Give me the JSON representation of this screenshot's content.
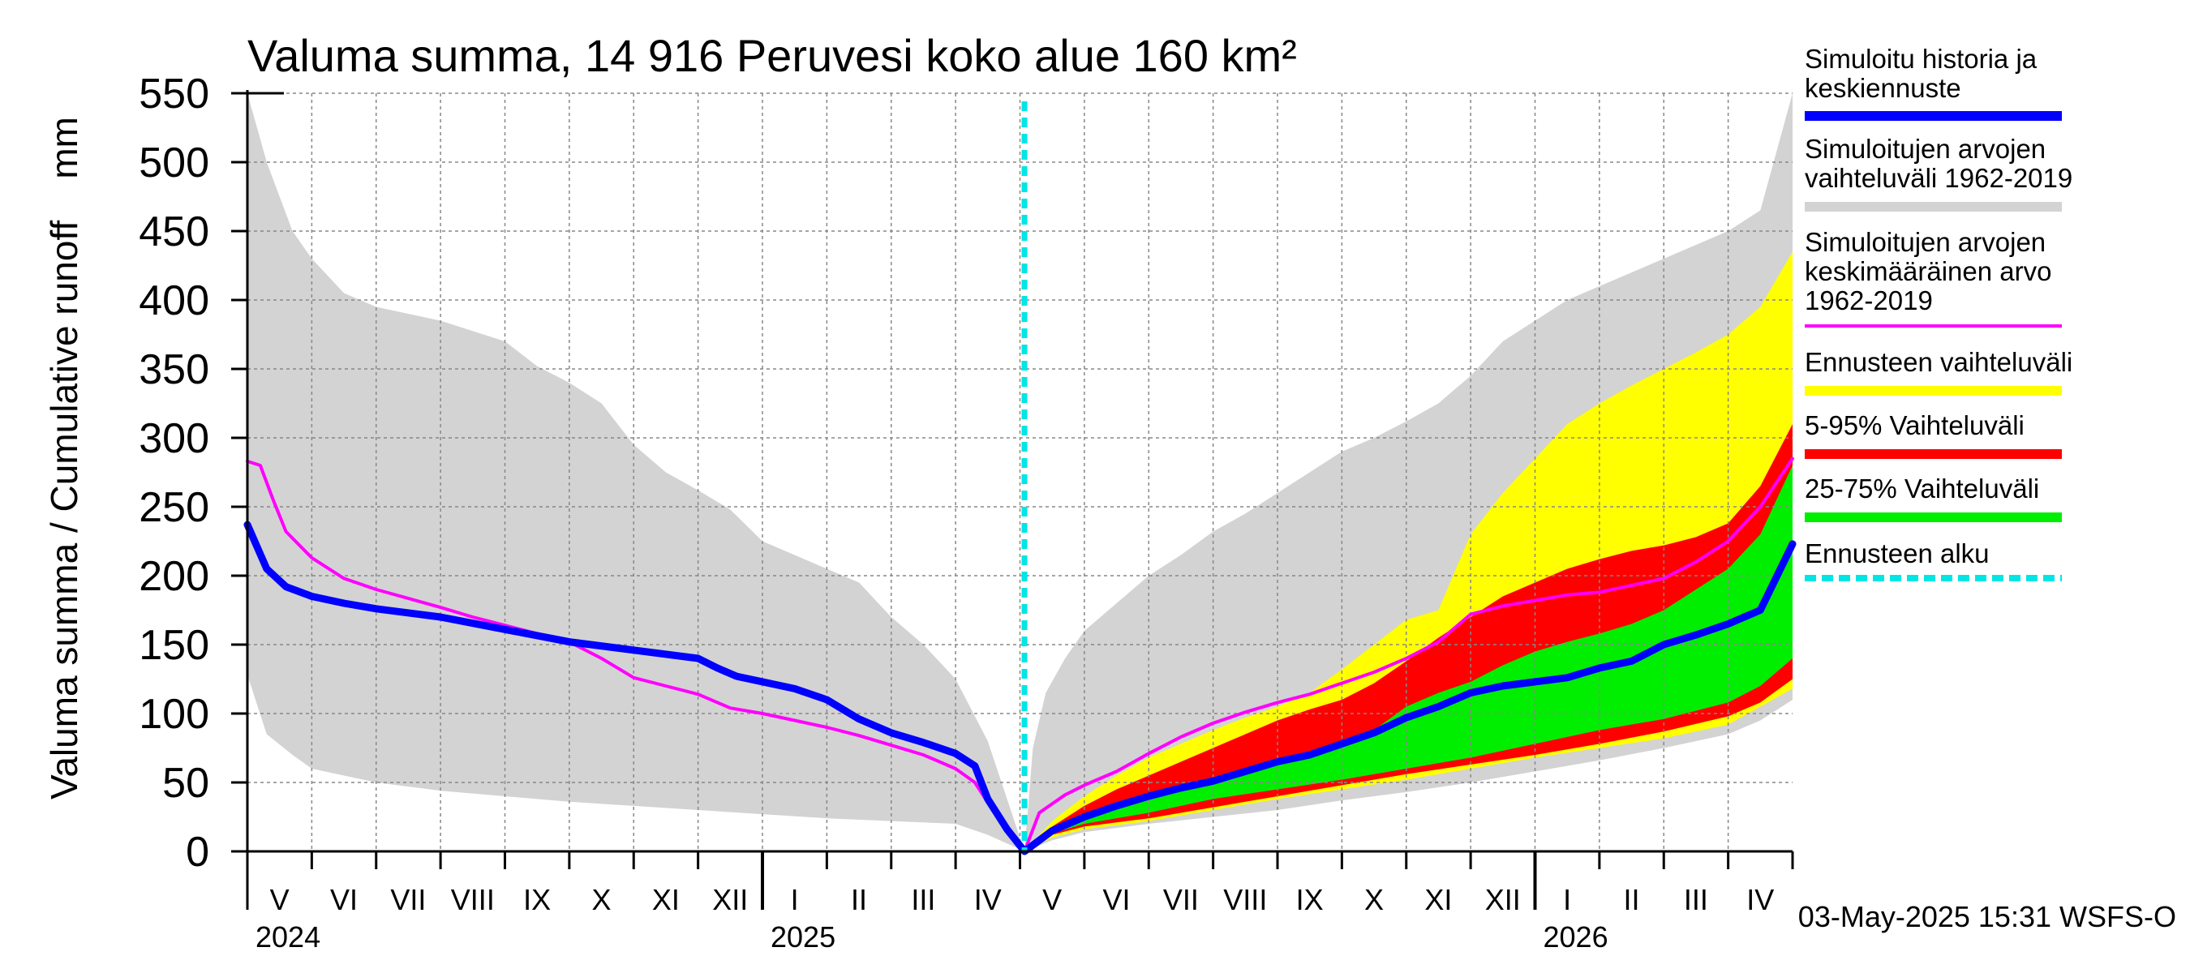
{
  "chart_data": {
    "type": "area",
    "title": "Valuma summa, 14 916 Peruvesi koko alue 160 km²",
    "ylabel": "Valuma summa / Cumulative runoff    mm",
    "ylim": [
      0,
      550
    ],
    "yticks": [
      0,
      50,
      100,
      150,
      200,
      250,
      300,
      350,
      400,
      450,
      500,
      550
    ],
    "x_unit": "months since 1 May 2024",
    "xlim": [
      0,
      24
    ],
    "forecast_start": 12.07,
    "month_labels": [
      "V",
      "VI",
      "VII",
      "VIII",
      "IX",
      "X",
      "XI",
      "XII",
      "I",
      "II",
      "III",
      "IV",
      "V",
      "VI",
      "VII",
      "VIII",
      "IX",
      "X",
      "XI",
      "XII",
      "I",
      "II",
      "III",
      "IV"
    ],
    "year_labels": [
      {
        "label": "2024",
        "month": 0
      },
      {
        "label": "2025",
        "month": 8
      },
      {
        "label": "2026",
        "month": 20
      }
    ],
    "timestamp": "03-May-2025 15:31 WSFS-O",
    "legend": [
      {
        "key": "hist",
        "label": [
          "Simuloitu historia ja",
          "keskiennuste"
        ],
        "color": "#0000ff",
        "style": "line"
      },
      {
        "key": "range",
        "label": [
          "Simuloitujen arvojen",
          "vaihteluväli 1962-2019"
        ],
        "color": "#d3d3d3",
        "style": "line"
      },
      {
        "key": "mean",
        "label": [
          "Simuloitujen arvojen",
          "keskimääräinen arvo",
          "   1962-2019"
        ],
        "color": "#ff00ff",
        "style": "thin"
      },
      {
        "key": "fc",
        "label": [
          "Ennusteen vaihteluväli"
        ],
        "color": "#ffff00",
        "style": "line"
      },
      {
        "key": "p595",
        "label": [
          "5-95% Vaihteluväli"
        ],
        "color": "#ff0000",
        "style": "line"
      },
      {
        "key": "p2575",
        "label": [
          "25-75% Vaihteluväli"
        ],
        "color": "#00ee00",
        "style": "line"
      },
      {
        "key": "start",
        "label": [
          "Ennusteen alku"
        ],
        "color": "#00e5e5",
        "style": "dashed"
      }
    ],
    "colors": {
      "gray": "#d3d3d3",
      "yellow": "#ffff00",
      "red": "#ff0000",
      "green": "#00ee00",
      "blue": "#0000ff",
      "magenta": "#ff00ff",
      "cyan": "#00e5e5",
      "grid": "#888888"
    },
    "series": {
      "hist_range_upper": {
        "x": [
          0,
          0.3,
          0.7,
          1,
          1.5,
          2,
          3,
          4,
          4.5,
          5,
          5.5,
          6,
          6.5,
          7,
          7.5,
          8,
          8.5,
          9,
          9.5,
          10,
          10.5,
          11,
          11.5,
          12.07
        ],
        "y": [
          550,
          500,
          450,
          430,
          405,
          395,
          385,
          370,
          352,
          340,
          325,
          295,
          275,
          262,
          248,
          225,
          215,
          205,
          195,
          170,
          150,
          125,
          80,
          0
        ]
      },
      "hist_range_lower": {
        "x": [
          0,
          0.3,
          0.7,
          1,
          2,
          3,
          4,
          5,
          6,
          7,
          8,
          9,
          10,
          11,
          11.5,
          12.07
        ],
        "y": [
          128,
          85,
          70,
          60,
          50,
          44,
          40,
          36,
          33,
          30,
          27,
          24,
          22,
          20,
          12,
          0
        ]
      },
      "fc_range_upper": {
        "x": [
          12.07,
          12.2,
          12.4,
          12.7,
          13,
          13.5,
          14,
          14.5,
          15,
          15.5,
          16,
          16.5,
          17,
          17.5,
          18,
          18.5,
          19,
          19.5,
          20,
          20.5,
          21,
          21.5,
          22,
          22.5,
          23,
          23.5,
          24
        ],
        "y": [
          0,
          75,
          115,
          140,
          160,
          180,
          200,
          215,
          232,
          245,
          260,
          275,
          290,
          300,
          312,
          325,
          345,
          370,
          385,
          400,
          410,
          420,
          430,
          440,
          450,
          465,
          550
        ]
      },
      "fc_range_lower": {
        "x": [
          12.07,
          12.5,
          13,
          14,
          15,
          16,
          17,
          18,
          19,
          20,
          21,
          22,
          23,
          23.5,
          24
        ],
        "y": [
          0,
          8,
          14,
          20,
          25,
          30,
          37,
          43,
          50,
          58,
          66,
          75,
          85,
          95,
          110
        ]
      },
      "yellow_upper": {
        "x": [
          12.07,
          12.5,
          13,
          13.5,
          14,
          14.5,
          15,
          15.5,
          16,
          16.5,
          17,
          17.5,
          18,
          18.5,
          19,
          19.5,
          20,
          20.5,
          21,
          21.5,
          22,
          22.5,
          23,
          23.5,
          24
        ],
        "y": [
          0,
          22,
          40,
          55,
          68,
          78,
          88,
          97,
          105,
          115,
          132,
          150,
          168,
          175,
          230,
          260,
          285,
          310,
          325,
          338,
          350,
          362,
          375,
          395,
          435
        ]
      },
      "yellow_lower": {
        "x": [
          12.07,
          12.5,
          13,
          14,
          15,
          16,
          17,
          18,
          19,
          20,
          21,
          22,
          23,
          24
        ],
        "y": [
          0,
          10,
          16,
          22,
          30,
          38,
          45,
          52,
          60,
          68,
          75,
          82,
          92,
          118
        ]
      },
      "red_upper": {
        "x": [
          12.07,
          12.5,
          13,
          13.5,
          14,
          14.5,
          15,
          15.5,
          16,
          16.5,
          17,
          17.5,
          18,
          18.5,
          19,
          19.5,
          20,
          20.5,
          21,
          21.5,
          22,
          22.5,
          23,
          23.5,
          24
        ],
        "y": [
          0,
          18,
          33,
          45,
          55,
          65,
          75,
          85,
          95,
          103,
          110,
          122,
          138,
          155,
          170,
          185,
          195,
          205,
          212,
          218,
          222,
          228,
          238,
          265,
          310
        ]
      },
      "red_lower": {
        "x": [
          12.07,
          12.5,
          13,
          14,
          15,
          16,
          17,
          18,
          19,
          20,
          21,
          22,
          23,
          23.5,
          24
        ],
        "y": [
          0,
          12,
          18,
          24,
          32,
          40,
          48,
          56,
          63,
          70,
          78,
          87,
          98,
          108,
          125
        ]
      },
      "green_upper": {
        "x": [
          12.07,
          12.5,
          13,
          13.5,
          14,
          14.5,
          15,
          15.5,
          16,
          16.5,
          17,
          17.5,
          18,
          18.5,
          19,
          19.5,
          20,
          20.5,
          21,
          21.5,
          22,
          22.5,
          23,
          23.5,
          24
        ],
        "y": [
          0,
          15,
          25,
          33,
          40,
          46,
          53,
          60,
          65,
          70,
          78,
          88,
          105,
          115,
          123,
          135,
          145,
          152,
          158,
          165,
          175,
          190,
          205,
          230,
          280
        ]
      },
      "green_lower": {
        "x": [
          12.07,
          12.5,
          13,
          14,
          15,
          16,
          17,
          18,
          19,
          20,
          21,
          22,
          23,
          23.5,
          24
        ],
        "y": [
          0,
          13,
          20,
          28,
          38,
          45,
          52,
          60,
          68,
          78,
          88,
          96,
          108,
          120,
          140
        ]
      },
      "blue": {
        "x": [
          0,
          0.3,
          0.6,
          1,
          1.5,
          2,
          3,
          4,
          5,
          6,
          7,
          7.3,
          7.6,
          8,
          8.5,
          9,
          9.5,
          10,
          10.5,
          11,
          11.3,
          11.5,
          11.8,
          12.07,
          12.5,
          13,
          13.5,
          14,
          14.5,
          15,
          15.5,
          16,
          16.5,
          17,
          17.5,
          18,
          18.5,
          19,
          19.5,
          20,
          20.5,
          21,
          21.5,
          22,
          22.5,
          23,
          23.5,
          24
        ],
        "y": [
          237,
          205,
          192,
          185,
          180,
          176,
          170,
          161,
          152,
          146,
          140,
          133,
          127,
          123,
          118,
          110,
          96,
          86,
          79,
          71,
          62,
          38,
          16,
          0,
          15,
          25,
          33,
          40,
          46,
          51,
          58,
          65,
          70,
          78,
          86,
          97,
          105,
          115,
          120,
          123,
          126,
          133,
          138,
          150,
          157,
          165,
          175,
          223
        ]
      },
      "magenta": {
        "x": [
          0,
          0.2,
          0.4,
          0.6,
          1,
          1.5,
          2,
          3,
          3.5,
          4,
          5,
          5.5,
          6,
          6.5,
          7,
          7.5,
          8,
          8.5,
          9,
          9.5,
          10,
          10.5,
          11,
          11.3,
          11.6,
          12.07,
          12.3,
          12.7,
          13,
          13.5,
          14,
          14.5,
          15,
          15.5,
          16,
          16.5,
          17,
          17.5,
          18,
          18.5,
          19,
          19.5,
          20,
          20.5,
          21,
          21.5,
          22,
          22.5,
          23,
          23.5,
          24
        ],
        "y": [
          283,
          280,
          255,
          232,
          213,
          198,
          190,
          177,
          170,
          164,
          152,
          140,
          126,
          120,
          114,
          104,
          100,
          95,
          90,
          84,
          77,
          70,
          60,
          50,
          28,
          0,
          28,
          41,
          48,
          58,
          71,
          83,
          93,
          101,
          108,
          114,
          122,
          130,
          140,
          152,
          172,
          178,
          182,
          186,
          188,
          193,
          198,
          210,
          225,
          250,
          285
        ]
      }
    }
  }
}
